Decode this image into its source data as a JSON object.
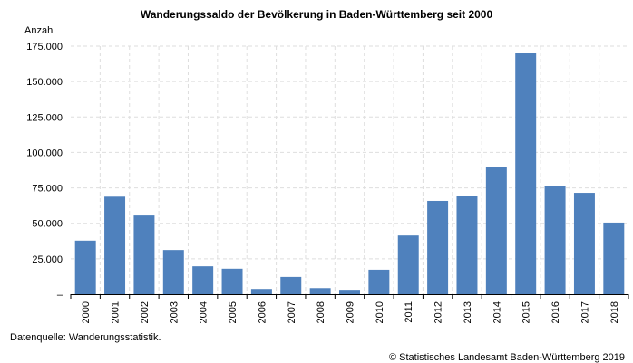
{
  "chart_data": {
    "type": "bar",
    "title": "Wanderungssaldo der Bevölkerung in Baden-Württemberg seit 2000",
    "ylabel": "Anzahl",
    "xlabel": "",
    "ylim": [
      0,
      175000
    ],
    "yticks": [
      0,
      25000,
      50000,
      75000,
      100000,
      125000,
      150000,
      175000
    ],
    "ytick_labels": [
      "–",
      "25.000",
      "50.000",
      "75.000",
      "100.000",
      "125.000",
      "150.000",
      "175.000"
    ],
    "categories": [
      "2000",
      "2001",
      "2002",
      "2003",
      "2004",
      "2005",
      "2006",
      "2007",
      "2008",
      "2009",
      "2010",
      "2011",
      "2012",
      "2013",
      "2014",
      "2015",
      "2016",
      "2017",
      "2018"
    ],
    "values": [
      37800,
      68800,
      55500,
      31200,
      19700,
      18000,
      3700,
      12200,
      4300,
      3100,
      17300,
      41400,
      65800,
      69500,
      89500,
      170000,
      76000,
      71500,
      50500
    ],
    "bar_color": "#4f81bd",
    "grid": true
  },
  "notes": {
    "source": "Datenquelle: Wanderungsstatistik.",
    "copyright": "© Statistisches Landesamt Baden-Württemberg 2019"
  }
}
